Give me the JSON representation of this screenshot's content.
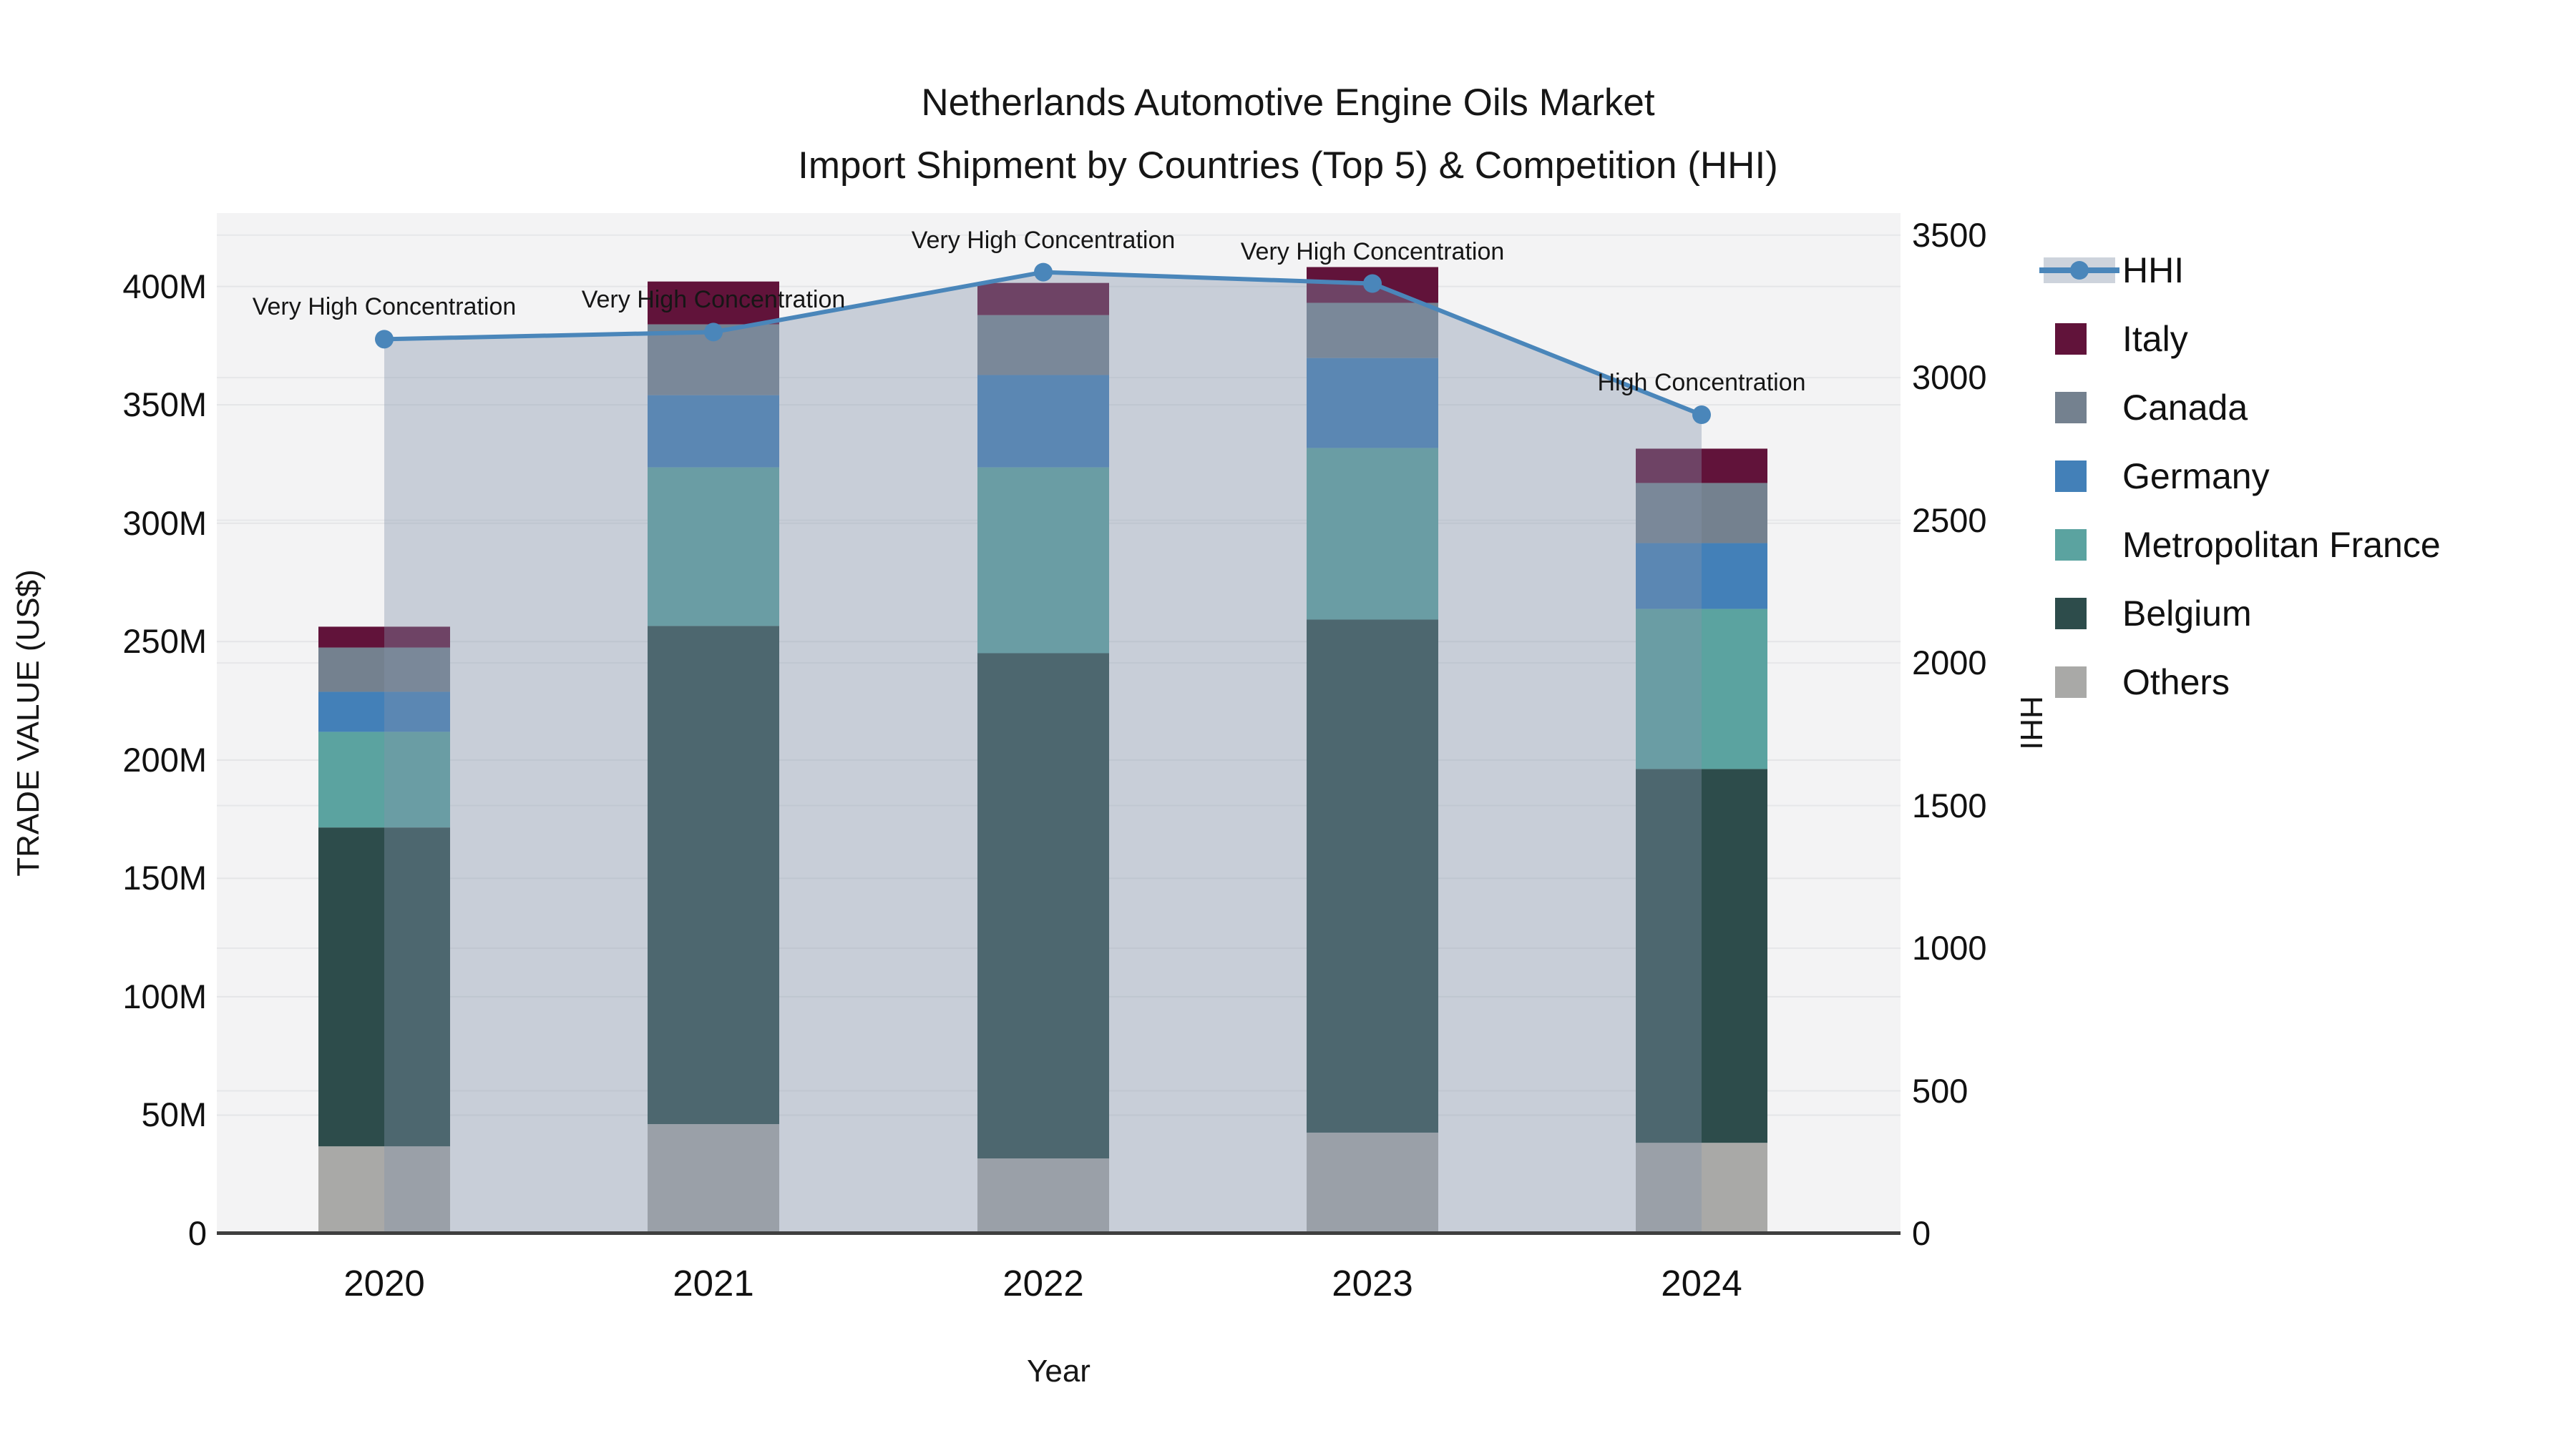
{
  "title": {
    "line1": "Netherlands Automotive Engine Oils Market",
    "line2": "Import Shipment by Countries (Top 5) & Competition (HHI)"
  },
  "axes": {
    "left": {
      "title": "TRADE VALUE (US$)",
      "ticks": [
        {
          "label": "0",
          "value": 0
        },
        {
          "label": "50M",
          "value": 50
        },
        {
          "label": "100M",
          "value": 100
        },
        {
          "label": "150M",
          "value": 150
        },
        {
          "label": "200M",
          "value": 200
        },
        {
          "label": "250M",
          "value": 250
        },
        {
          "label": "300M",
          "value": 300
        },
        {
          "label": "350M",
          "value": 350
        },
        {
          "label": "400M",
          "value": 400
        }
      ]
    },
    "right": {
      "title": "HHI",
      "ticks": [
        {
          "label": "0",
          "value": 0
        },
        {
          "label": "500",
          "value": 500
        },
        {
          "label": "1000",
          "value": 1000
        },
        {
          "label": "1500",
          "value": 1500
        },
        {
          "label": "2000",
          "value": 2000
        },
        {
          "label": "2500",
          "value": 2500
        },
        {
          "label": "3000",
          "value": 3000
        },
        {
          "label": "3500",
          "value": 3500
        }
      ]
    },
    "x": {
      "title": "Year"
    }
  },
  "legend": [
    {
      "label": "HHI",
      "type": "line",
      "color": "#4a86ba"
    },
    {
      "label": "Italy",
      "type": "square",
      "color": "#61133a"
    },
    {
      "label": "Canada",
      "type": "square",
      "color": "#74818f"
    },
    {
      "label": "Germany",
      "type": "square",
      "color": "#4380b8"
    },
    {
      "label": "Metropolitan France",
      "type": "square",
      "color": "#5ba3a0"
    },
    {
      "label": "Belgium",
      "type": "square",
      "color": "#2d4c4b"
    },
    {
      "label": "Others",
      "type": "square",
      "color": "#a9a9a7"
    }
  ],
  "annotations": [
    {
      "year": "2020",
      "text": "Very High Concentration"
    },
    {
      "year": "2021",
      "text": "Very High Concentration"
    },
    {
      "year": "2022",
      "text": "Very High Concentration"
    },
    {
      "year": "2023",
      "text": "Very High Concentration"
    },
    {
      "year": "2024",
      "text": "High Concentration"
    }
  ],
  "chart_data": {
    "type": "combo-stacked-bar-line",
    "title": "Netherlands Automotive Engine Oils Market — Import Shipment by Countries (Top 5) & Competition (HHI)",
    "categories": [
      "2020",
      "2021",
      "2022",
      "2023",
      "2024"
    ],
    "bar_units": "US$ millions",
    "bar_series": [
      {
        "name": "Others",
        "color": "#a9a9a7",
        "values": [
          36.8,
          46.2,
          31.7,
          42.6,
          38.3
        ]
      },
      {
        "name": "Belgium",
        "color": "#2d4c4b",
        "values": [
          134.7,
          210.4,
          213.4,
          216.7,
          157.9
        ]
      },
      {
        "name": "Metropolitan France",
        "color": "#5ba3a0",
        "values": [
          40.4,
          67.0,
          78.5,
          72.5,
          67.6
        ]
      },
      {
        "name": "Germany",
        "color": "#4380b8",
        "values": [
          16.9,
          30.5,
          39.0,
          38.0,
          27.8
        ]
      },
      {
        "name": "Canada",
        "color": "#74818f",
        "values": [
          18.7,
          29.9,
          25.3,
          23.3,
          25.4
        ]
      },
      {
        "name": "Italy",
        "color": "#61133a",
        "values": [
          8.8,
          18.1,
          13.6,
          15.1,
          14.5
        ]
      }
    ],
    "bar_totals": [
      256.3,
      402.1,
      401.5,
      408.2,
      331.5
    ],
    "line_series": {
      "name": "HHI",
      "axis": "right",
      "color": "#4a86ba",
      "fill": "rgba(131,146,171,0.38)",
      "values": [
        3135,
        3160,
        3370,
        3330,
        2870
      ]
    },
    "xlabel": "Year",
    "ylabel_left": "TRADE VALUE (US$)",
    "ylabel_right": "HHI",
    "ylim_left": [
      0,
      431
    ],
    "ylim_right": [
      0,
      3577
    ],
    "grid": true,
    "legend_position": "right"
  }
}
